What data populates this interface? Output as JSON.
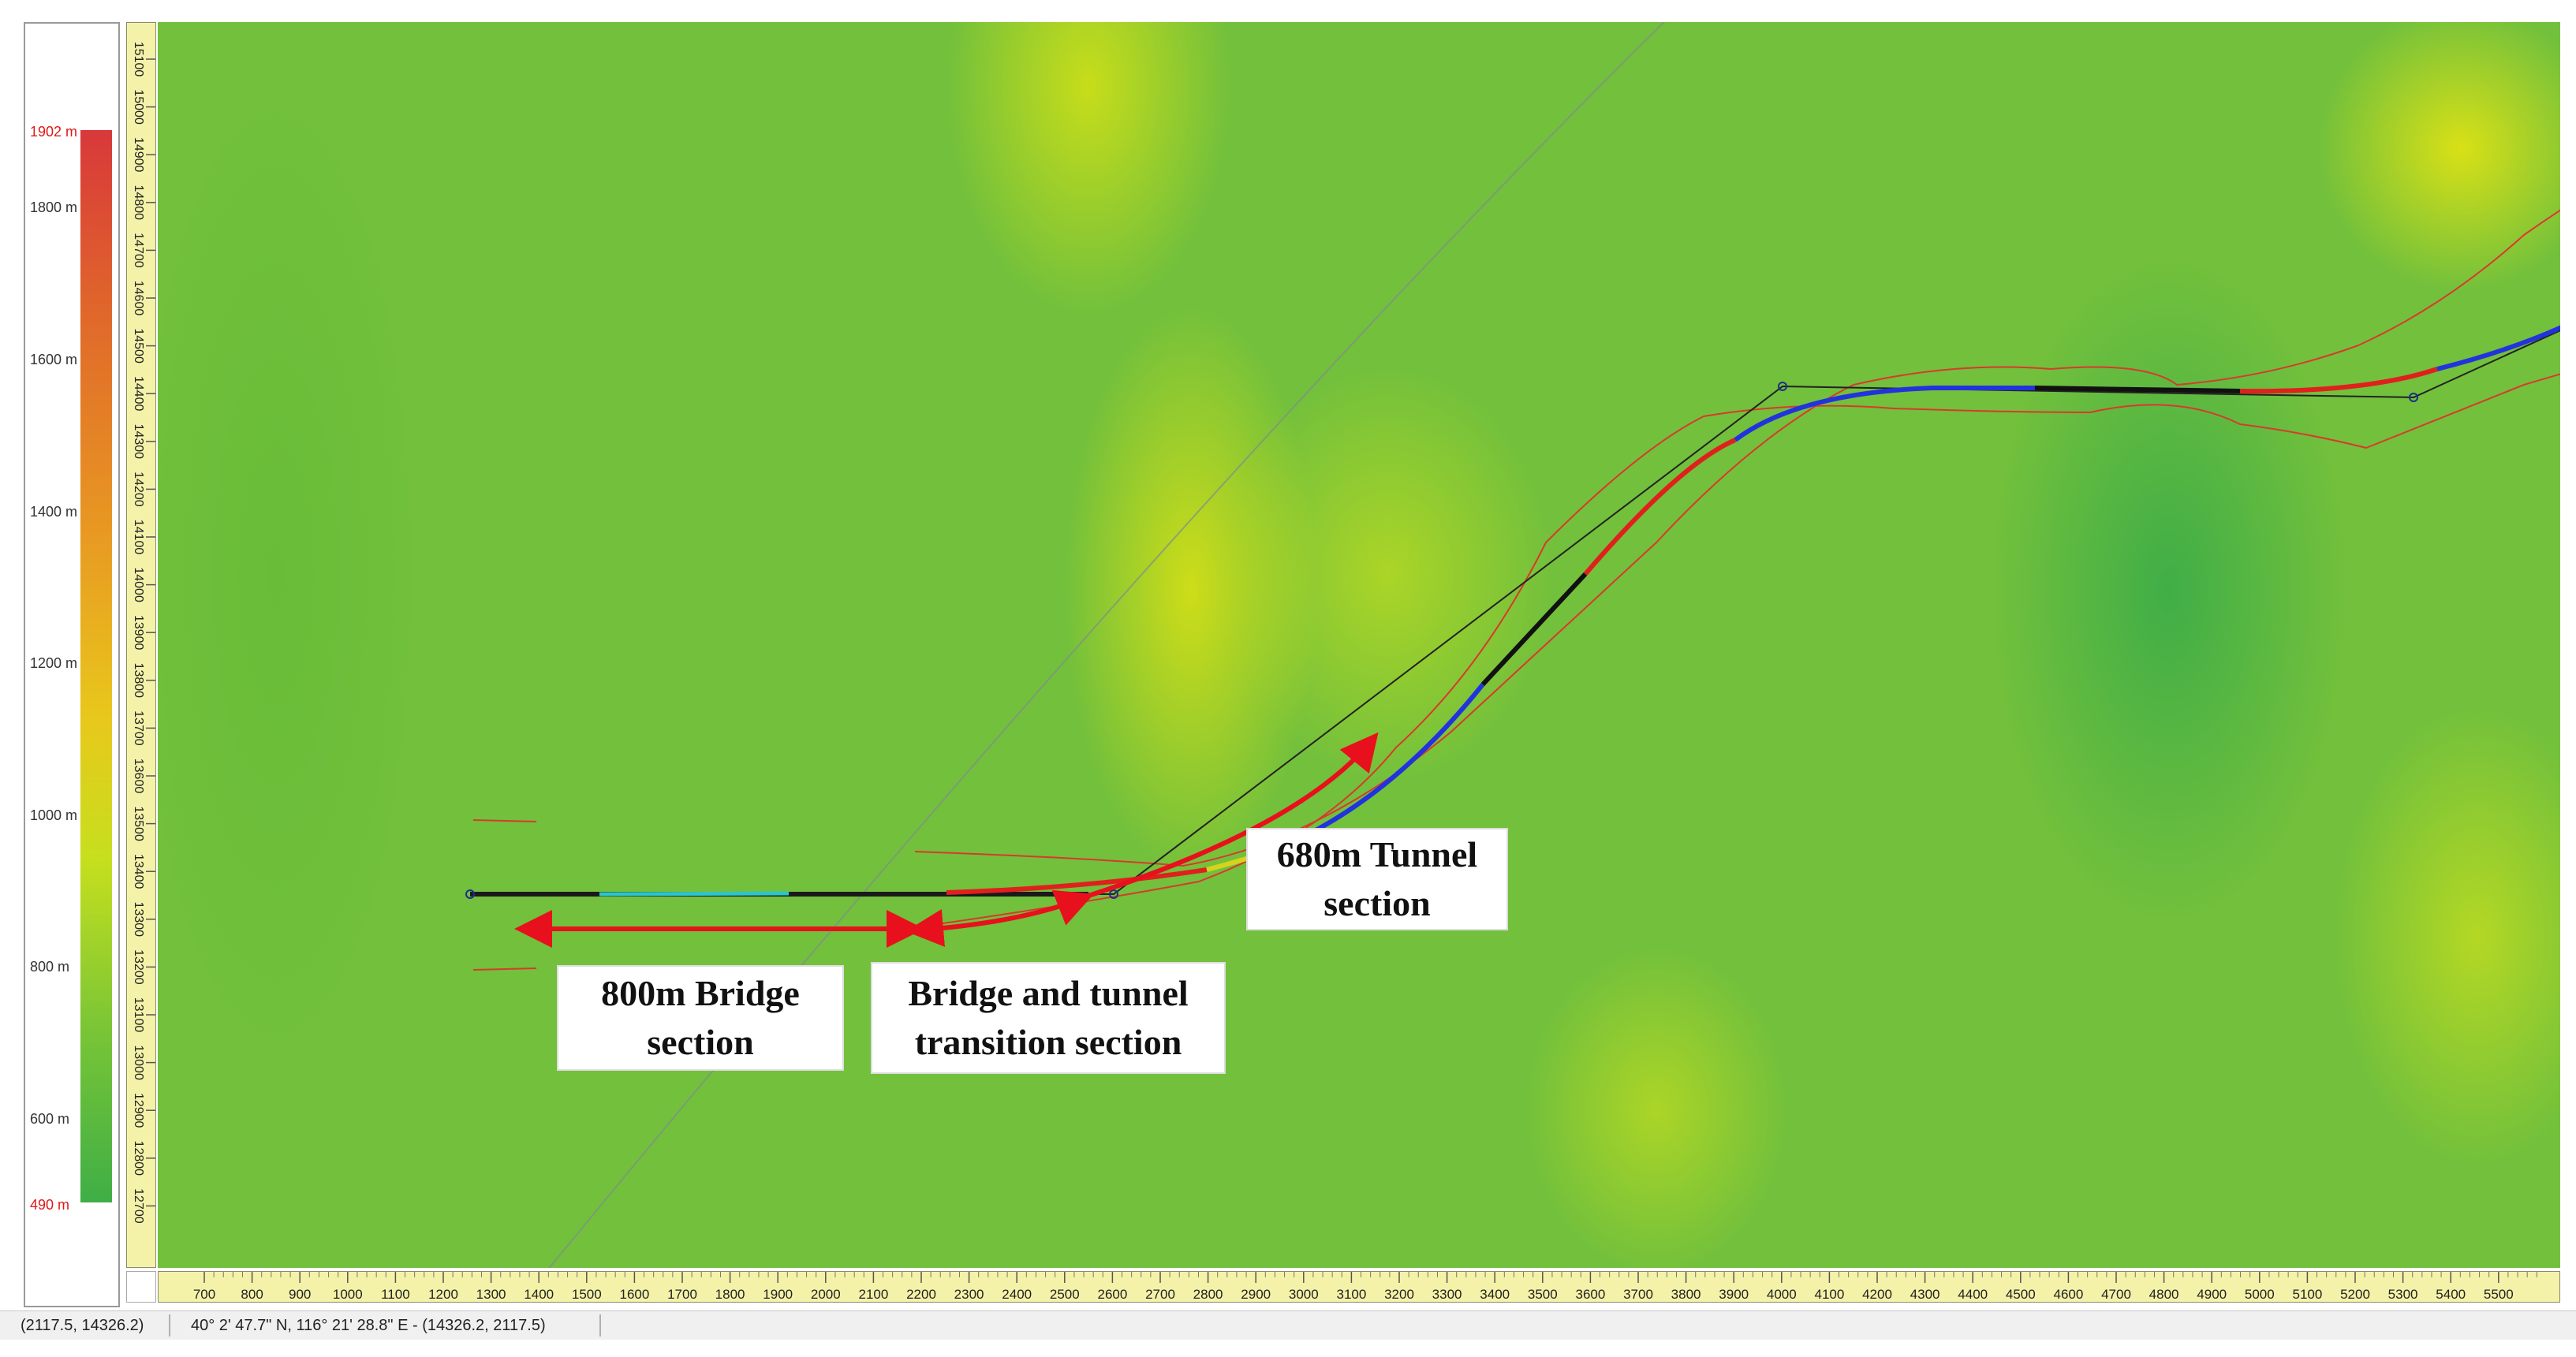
{
  "legend": {
    "max_label": "1902 m",
    "min_label": "490 m",
    "labels": [
      "1800 m",
      "1600 m",
      "1400 m",
      "1200 m",
      "1000 m",
      "800 m",
      "600 m"
    ],
    "colors": {
      "high": "#d8383a",
      "mid": "#e8c81c",
      "low": "#3fae46"
    }
  },
  "rulers": {
    "horizontal": [
      "700",
      "800",
      "900",
      "1000",
      "1100",
      "1200",
      "1300",
      "1400",
      "1500",
      "1600",
      "1700",
      "1800",
      "1900",
      "2000",
      "2100",
      "2200",
      "2300",
      "2400",
      "2500",
      "2600",
      "2700",
      "2800",
      "2900",
      "3000",
      "3100",
      "3200",
      "3300",
      "3400",
      "3500",
      "3600",
      "3700",
      "3800",
      "3900",
      "4000",
      "4100",
      "4200",
      "4300",
      "4400",
      "4500",
      "4600",
      "4700",
      "4800",
      "4900",
      "5000",
      "5100",
      "5200",
      "5300",
      "5400",
      "5500"
    ],
    "vertical": [
      "15100",
      "15000",
      "14900",
      "14800",
      "14700",
      "14600",
      "14500",
      "14400",
      "14300",
      "14200",
      "14100",
      "14000",
      "13900",
      "13800",
      "13700",
      "13600",
      "13500",
      "13400",
      "13300",
      "13200",
      "13100",
      "13000",
      "12900",
      "12800",
      "12700"
    ]
  },
  "annotations": {
    "bridge": "800m Bridge section",
    "transition": "Bridge and tunnel transition section",
    "tunnel": "680m Tunnel section"
  },
  "status": {
    "coords": "(2117.5, 14326.2)",
    "geo": "40° 2' 47.7\" N, 116° 21' 28.8\" E  -  (14326.2, 2117.5)"
  }
}
